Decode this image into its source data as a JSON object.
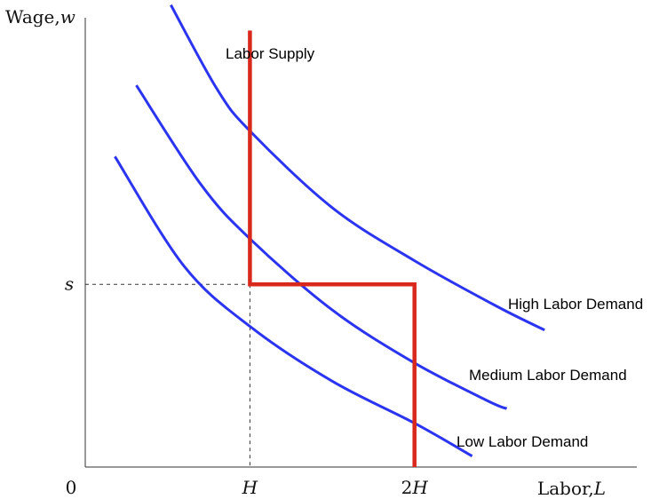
{
  "chart_data": {
    "type": "line",
    "title": "",
    "ylabel": {
      "text": "Wage,",
      "var": "w"
    },
    "xlabel": {
      "text": "Labor,",
      "var": "L"
    },
    "origin_label": "0",
    "xlim": [
      0,
      3.35
    ],
    "ylim": [
      0,
      2.46
    ],
    "x_ticks": [
      {
        "value": 1,
        "label": "H"
      },
      {
        "value": 2,
        "label": "2H"
      }
    ],
    "y_ticks": [
      {
        "value": 1,
        "label": "s"
      }
    ],
    "guide_lines": {
      "style": "dashed",
      "x": 1,
      "y": 1
    },
    "series": [
      {
        "name": "Low Labor Demand",
        "kind": "demand",
        "color": "#2b35f0",
        "x": [
          0.18,
          0.6,
          1.0,
          1.5,
          2.0,
          2.35
        ],
        "y": [
          1.7,
          1.1,
          0.77,
          0.47,
          0.24,
          0.06
        ]
      },
      {
        "name": "Medium Labor Demand",
        "kind": "demand",
        "color": "#2b35f0",
        "x": [
          0.31,
          0.7,
          1.0,
          1.5,
          2.0,
          2.45,
          2.56
        ],
        "y": [
          2.09,
          1.55,
          1.25,
          0.86,
          0.57,
          0.36,
          0.32
        ]
      },
      {
        "name": "High Labor Demand",
        "kind": "demand",
        "color": "#2b35f0",
        "x": [
          0.52,
          0.8,
          1.0,
          1.5,
          2.0,
          2.5,
          2.79
        ],
        "y": [
          2.53,
          2.07,
          1.84,
          1.42,
          1.13,
          0.88,
          0.75
        ]
      },
      {
        "name": "Labor Supply",
        "kind": "supply",
        "color": "#d8291c",
        "x": [
          1,
          1,
          2,
          2
        ],
        "y": [
          2.39,
          1,
          1,
          0
        ]
      }
    ],
    "legend": "direct labels at line ends"
  }
}
